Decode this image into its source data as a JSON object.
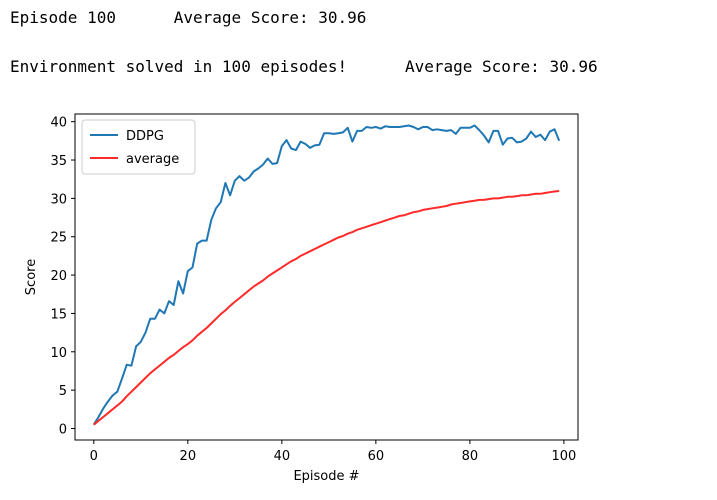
{
  "output": {
    "line1": "Episode 100      Average Score: 30.96",
    "line2": "Environment solved in 100 episodes!      Average Score: 30.96"
  },
  "chart_data": {
    "type": "line",
    "title": "",
    "xlabel": "Episode #",
    "ylabel": "Score",
    "xlim": [
      -4,
      103
    ],
    "ylim": [
      -1.5,
      41
    ],
    "xticks": [
      0,
      20,
      40,
      60,
      80,
      100
    ],
    "yticks": [
      0,
      5,
      10,
      15,
      20,
      25,
      30,
      35,
      40
    ],
    "grid": false,
    "legend": "top-left",
    "series": [
      {
        "name": "DDPG",
        "color": "#1f77b4",
        "x": [
          0,
          1,
          2,
          3,
          4,
          5,
          6,
          7,
          8,
          9,
          10,
          11,
          12,
          13,
          14,
          15,
          16,
          17,
          18,
          19,
          20,
          21,
          22,
          23,
          24,
          25,
          26,
          27,
          28,
          29,
          30,
          31,
          32,
          33,
          34,
          35,
          36,
          37,
          38,
          39,
          40,
          41,
          42,
          43,
          44,
          45,
          46,
          47,
          48,
          49,
          50,
          51,
          52,
          53,
          54,
          55,
          56,
          57,
          58,
          59,
          60,
          61,
          62,
          63,
          64,
          65,
          66,
          67,
          68,
          69,
          70,
          71,
          72,
          73,
          74,
          75,
          76,
          77,
          78,
          79,
          80,
          81,
          82,
          83,
          84,
          85,
          86,
          87,
          88,
          89,
          90,
          91,
          92,
          93,
          94,
          95,
          96,
          97,
          98,
          99
        ],
        "y": [
          0.5,
          1.5,
          2.6,
          3.5,
          4.3,
          4.8,
          6.5,
          8.3,
          8.2,
          10.7,
          11.3,
          12.5,
          14.3,
          14.3,
          15.5,
          15.0,
          16.6,
          16.1,
          19.2,
          17.6,
          20.5,
          21.0,
          24.1,
          24.5,
          24.5,
          27.2,
          28.7,
          29.5,
          32.0,
          30.4,
          32.3,
          32.9,
          32.3,
          32.7,
          33.5,
          33.9,
          34.4,
          35.2,
          34.5,
          34.6,
          36.8,
          37.6,
          36.5,
          36.3,
          37.4,
          37.1,
          36.6,
          36.9,
          37.0,
          38.5,
          38.5,
          38.4,
          38.5,
          38.6,
          39.2,
          37.4,
          38.8,
          38.8,
          39.3,
          39.2,
          39.3,
          39.1,
          39.4,
          39.3,
          39.3,
          39.3,
          39.4,
          39.5,
          39.3,
          39.0,
          39.3,
          39.3,
          38.9,
          39.0,
          38.9,
          38.8,
          38.9,
          38.4,
          39.2,
          39.2,
          39.2,
          39.5,
          38.9,
          38.2,
          37.3,
          38.8,
          38.8,
          37.0,
          37.8,
          37.9,
          37.3,
          37.4,
          37.8,
          38.7,
          38.0,
          38.3,
          37.6,
          38.7,
          39.0,
          37.5
        ]
      },
      {
        "name": "average",
        "color": "#ff2a2a",
        "x": [
          0,
          1,
          2,
          3,
          4,
          5,
          6,
          7,
          8,
          9,
          10,
          11,
          12,
          13,
          14,
          15,
          16,
          17,
          18,
          19,
          20,
          21,
          22,
          23,
          24,
          25,
          26,
          27,
          28,
          29,
          30,
          31,
          32,
          33,
          34,
          35,
          36,
          37,
          38,
          39,
          40,
          41,
          42,
          43,
          44,
          45,
          46,
          47,
          48,
          49,
          50,
          51,
          52,
          53,
          54,
          55,
          56,
          57,
          58,
          59,
          60,
          61,
          62,
          63,
          64,
          65,
          66,
          67,
          68,
          69,
          70,
          71,
          72,
          73,
          74,
          75,
          76,
          77,
          78,
          79,
          80,
          81,
          82,
          83,
          84,
          85,
          86,
          87,
          88,
          89,
          90,
          91,
          92,
          93,
          94,
          95,
          96,
          97,
          98,
          99
        ],
        "y": [
          0.5,
          1.0,
          1.5,
          2.0,
          2.5,
          3.0,
          3.5,
          4.2,
          4.8,
          5.4,
          6.0,
          6.6,
          7.2,
          7.7,
          8.2,
          8.7,
          9.2,
          9.6,
          10.1,
          10.6,
          11.0,
          11.5,
          12.1,
          12.6,
          13.1,
          13.7,
          14.3,
          14.9,
          15.4,
          16.0,
          16.5,
          17.0,
          17.5,
          18.0,
          18.5,
          18.9,
          19.3,
          19.8,
          20.2,
          20.6,
          21.0,
          21.4,
          21.8,
          22.1,
          22.5,
          22.8,
          23.1,
          23.4,
          23.7,
          24.0,
          24.3,
          24.6,
          24.9,
          25.1,
          25.4,
          25.6,
          25.9,
          26.1,
          26.3,
          26.5,
          26.7,
          26.9,
          27.1,
          27.3,
          27.5,
          27.7,
          27.8,
          28.0,
          28.2,
          28.3,
          28.5,
          28.6,
          28.7,
          28.8,
          28.9,
          29.0,
          29.2,
          29.3,
          29.4,
          29.5,
          29.6,
          29.7,
          29.8,
          29.8,
          29.9,
          30.0,
          30.0,
          30.1,
          30.2,
          30.2,
          30.3,
          30.4,
          30.4,
          30.5,
          30.6,
          30.6,
          30.7,
          30.8,
          30.9,
          30.96
        ]
      }
    ]
  }
}
